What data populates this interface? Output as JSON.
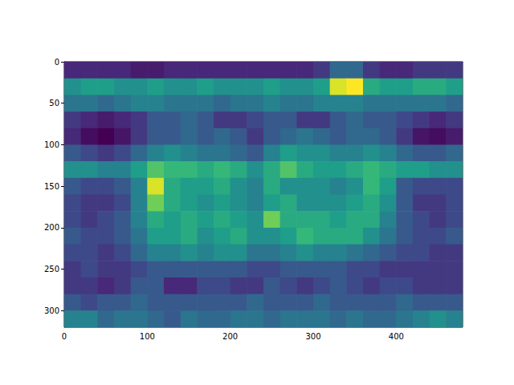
{
  "chart_data": {
    "type": "heatmap",
    "x_edges": [
      0,
      20,
      40,
      60,
      80,
      100,
      120,
      140,
      160,
      180,
      200,
      220,
      240,
      260,
      280,
      300,
      320,
      340,
      360,
      380,
      400,
      420,
      440,
      460,
      480
    ],
    "y_edges": [
      0,
      20,
      40,
      60,
      80,
      100,
      120,
      140,
      160,
      180,
      200,
      220,
      240,
      260,
      280,
      300,
      320
    ],
    "cells": [
      [
        0.15,
        0.15,
        0.15,
        0.15,
        0.12,
        0.12,
        0.15,
        0.15,
        0.15,
        0.15,
        0.15,
        0.15,
        0.15,
        0.15,
        0.15,
        0.2,
        0.35,
        0.35,
        0.2,
        0.15,
        0.15,
        0.2,
        0.2,
        0.2
      ],
      [
        0.5,
        0.55,
        0.55,
        0.5,
        0.5,
        0.55,
        0.5,
        0.5,
        0.55,
        0.5,
        0.5,
        0.5,
        0.55,
        0.5,
        0.5,
        0.55,
        0.9,
        0.95,
        0.6,
        0.55,
        0.55,
        0.6,
        0.6,
        0.55
      ],
      [
        0.4,
        0.4,
        0.35,
        0.4,
        0.45,
        0.45,
        0.4,
        0.4,
        0.4,
        0.35,
        0.4,
        0.4,
        0.45,
        0.4,
        0.4,
        0.45,
        0.45,
        0.45,
        0.4,
        0.4,
        0.4,
        0.4,
        0.4,
        0.35
      ],
      [
        0.2,
        0.15,
        0.12,
        0.15,
        0.2,
        0.3,
        0.3,
        0.35,
        0.3,
        0.2,
        0.2,
        0.25,
        0.3,
        0.3,
        0.2,
        0.2,
        0.3,
        0.35,
        0.3,
        0.3,
        0.25,
        0.2,
        0.15,
        0.2
      ],
      [
        0.15,
        0.08,
        0.05,
        0.1,
        0.2,
        0.3,
        0.3,
        0.35,
        0.3,
        0.35,
        0.3,
        0.2,
        0.3,
        0.35,
        0.4,
        0.35,
        0.3,
        0.35,
        0.35,
        0.3,
        0.2,
        0.1,
        0.08,
        0.12
      ],
      [
        0.3,
        0.25,
        0.2,
        0.25,
        0.35,
        0.45,
        0.5,
        0.45,
        0.4,
        0.4,
        0.35,
        0.3,
        0.45,
        0.55,
        0.5,
        0.5,
        0.45,
        0.45,
        0.5,
        0.45,
        0.35,
        0.3,
        0.3,
        0.35
      ],
      [
        0.5,
        0.5,
        0.45,
        0.45,
        0.55,
        0.7,
        0.65,
        0.65,
        0.6,
        0.65,
        0.6,
        0.5,
        0.6,
        0.7,
        0.6,
        0.55,
        0.55,
        0.6,
        0.65,
        0.6,
        0.55,
        0.55,
        0.5,
        0.5
      ],
      [
        0.3,
        0.25,
        0.25,
        0.3,
        0.45,
        0.9,
        0.6,
        0.55,
        0.55,
        0.6,
        0.5,
        0.45,
        0.6,
        0.5,
        0.5,
        0.5,
        0.45,
        0.5,
        0.65,
        0.55,
        0.3,
        0.25,
        0.25,
        0.25
      ],
      [
        0.25,
        0.2,
        0.2,
        0.25,
        0.45,
        0.75,
        0.6,
        0.55,
        0.5,
        0.55,
        0.5,
        0.45,
        0.55,
        0.6,
        0.5,
        0.5,
        0.5,
        0.55,
        0.6,
        0.5,
        0.3,
        0.2,
        0.2,
        0.25
      ],
      [
        0.25,
        0.2,
        0.25,
        0.3,
        0.45,
        0.6,
        0.55,
        0.6,
        0.55,
        0.6,
        0.55,
        0.5,
        0.75,
        0.6,
        0.6,
        0.6,
        0.55,
        0.6,
        0.6,
        0.45,
        0.3,
        0.25,
        0.2,
        0.25
      ],
      [
        0.3,
        0.25,
        0.25,
        0.3,
        0.4,
        0.55,
        0.55,
        0.6,
        0.5,
        0.55,
        0.6,
        0.5,
        0.5,
        0.55,
        0.65,
        0.6,
        0.6,
        0.6,
        0.5,
        0.4,
        0.3,
        0.25,
        0.25,
        0.3
      ],
      [
        0.25,
        0.25,
        0.2,
        0.25,
        0.35,
        0.45,
        0.45,
        0.5,
        0.45,
        0.5,
        0.5,
        0.4,
        0.4,
        0.45,
        0.5,
        0.45,
        0.45,
        0.4,
        0.35,
        0.3,
        0.25,
        0.25,
        0.2,
        0.2
      ],
      [
        0.2,
        0.25,
        0.2,
        0.2,
        0.25,
        0.3,
        0.3,
        0.3,
        0.3,
        0.3,
        0.3,
        0.25,
        0.25,
        0.3,
        0.3,
        0.3,
        0.3,
        0.25,
        0.25,
        0.2,
        0.2,
        0.2,
        0.2,
        0.2
      ],
      [
        0.2,
        0.2,
        0.15,
        0.2,
        0.3,
        0.3,
        0.15,
        0.15,
        0.25,
        0.25,
        0.2,
        0.2,
        0.3,
        0.25,
        0.2,
        0.25,
        0.3,
        0.25,
        0.2,
        0.25,
        0.25,
        0.2,
        0.2,
        0.2
      ],
      [
        0.3,
        0.25,
        0.3,
        0.3,
        0.35,
        0.3,
        0.3,
        0.3,
        0.3,
        0.3,
        0.3,
        0.35,
        0.3,
        0.3,
        0.3,
        0.35,
        0.3,
        0.3,
        0.3,
        0.3,
        0.35,
        0.3,
        0.3,
        0.3
      ],
      [
        0.45,
        0.45,
        0.35,
        0.4,
        0.4,
        0.35,
        0.3,
        0.4,
        0.35,
        0.35,
        0.4,
        0.4,
        0.35,
        0.4,
        0.4,
        0.4,
        0.35,
        0.4,
        0.35,
        0.35,
        0.4,
        0.45,
        0.5,
        0.45
      ]
    ],
    "xlim": [
      0,
      480
    ],
    "ylim": [
      320,
      0
    ],
    "xticks": [
      0,
      100,
      200,
      300,
      400
    ],
    "yticks": [
      0,
      50,
      100,
      150,
      200,
      250,
      300
    ]
  }
}
